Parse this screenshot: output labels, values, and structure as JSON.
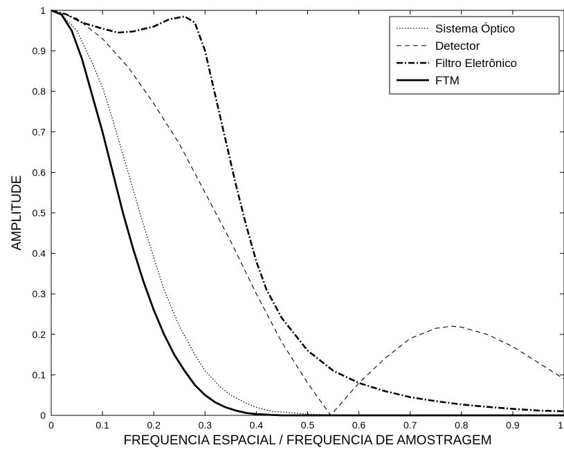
{
  "chart_data": {
    "type": "line",
    "xlabel": "FREQUENCIA ESPACIAL / FREQUENCIA DE AMOSTRAGEM",
    "ylabel": "AMPLITUDE",
    "xlim": [
      0,
      1
    ],
    "ylim": [
      0,
      1
    ],
    "xticks": [
      "0",
      "0.1",
      "0.2",
      "0.3",
      "0.4",
      "0.5",
      "0.6",
      "0.7",
      "0.8",
      "0.9",
      "1"
    ],
    "yticks": [
      "0",
      "0.1",
      "0.2",
      "0.3",
      "0.4",
      "0.5",
      "0.6",
      "0.7",
      "0.8",
      "0.9",
      "1"
    ],
    "grid": false,
    "legend_position": "top-right",
    "series": [
      {
        "name": "Sistema Óptico",
        "style": "dotted",
        "x": [
          0,
          0.02,
          0.05,
          0.08,
          0.1,
          0.12,
          0.15,
          0.18,
          0.2,
          0.22,
          0.25,
          0.28,
          0.3,
          0.33,
          0.35,
          0.38,
          0.4,
          0.43,
          0.45,
          0.5,
          0.55,
          0.6,
          0.7,
          0.8,
          0.9,
          1.0
        ],
        "y": [
          1.0,
          0.99,
          0.95,
          0.87,
          0.81,
          0.73,
          0.6,
          0.47,
          0.39,
          0.31,
          0.22,
          0.15,
          0.11,
          0.07,
          0.05,
          0.03,
          0.02,
          0.01,
          0.008,
          0.003,
          0.001,
          0.0,
          0.0,
          0.0,
          0.0,
          0.0
        ]
      },
      {
        "name": "Detector",
        "style": "dashed",
        "x": [
          0,
          0.05,
          0.1,
          0.15,
          0.2,
          0.25,
          0.3,
          0.35,
          0.4,
          0.45,
          0.5,
          0.545,
          0.6,
          0.65,
          0.7,
          0.75,
          0.78,
          0.8,
          0.85,
          0.9,
          0.95,
          1.0
        ],
        "y": [
          1.0,
          0.98,
          0.93,
          0.86,
          0.77,
          0.67,
          0.55,
          0.43,
          0.3,
          0.18,
          0.08,
          0.0,
          0.08,
          0.14,
          0.19,
          0.215,
          0.22,
          0.218,
          0.2,
          0.17,
          0.13,
          0.09
        ]
      },
      {
        "name": "Filtro Eletrônico",
        "style": "dash-dot",
        "x": [
          0,
          0.03,
          0.06,
          0.1,
          0.13,
          0.16,
          0.2,
          0.23,
          0.26,
          0.28,
          0.3,
          0.32,
          0.34,
          0.36,
          0.38,
          0.4,
          0.42,
          0.45,
          0.5,
          0.55,
          0.6,
          0.65,
          0.7,
          0.75,
          0.8,
          0.85,
          0.9,
          0.95,
          1.0
        ],
        "y": [
          1.0,
          0.99,
          0.97,
          0.955,
          0.945,
          0.948,
          0.96,
          0.978,
          0.985,
          0.97,
          0.9,
          0.79,
          0.68,
          0.57,
          0.47,
          0.38,
          0.31,
          0.24,
          0.16,
          0.11,
          0.08,
          0.06,
          0.045,
          0.035,
          0.027,
          0.021,
          0.016,
          0.012,
          0.01
        ]
      },
      {
        "name": "FTM",
        "style": "solid",
        "x": [
          0,
          0.02,
          0.04,
          0.06,
          0.08,
          0.1,
          0.12,
          0.14,
          0.16,
          0.18,
          0.2,
          0.22,
          0.24,
          0.26,
          0.28,
          0.3,
          0.32,
          0.34,
          0.36,
          0.38,
          0.4,
          0.43,
          0.45,
          0.5,
          0.6,
          0.7,
          0.8,
          0.9,
          1.0
        ],
        "y": [
          1.0,
          0.99,
          0.95,
          0.88,
          0.79,
          0.7,
          0.6,
          0.5,
          0.41,
          0.33,
          0.26,
          0.2,
          0.15,
          0.11,
          0.075,
          0.05,
          0.032,
          0.02,
          0.012,
          0.006,
          0.003,
          0.001,
          0.0,
          0.0,
          0.0,
          0.0,
          0.0,
          0.0,
          0.0
        ]
      }
    ]
  }
}
